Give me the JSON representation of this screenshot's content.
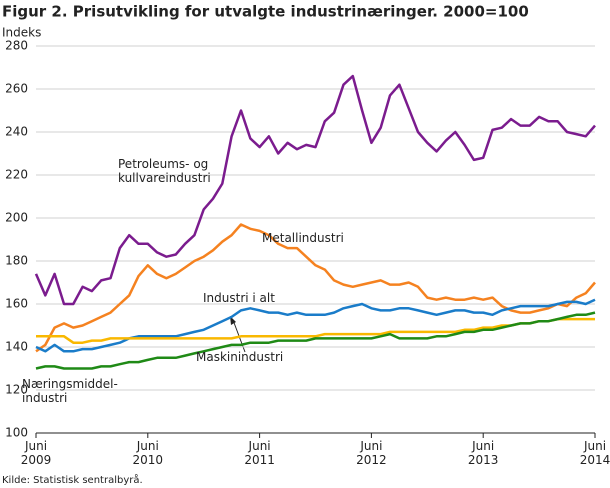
{
  "chart_data": {
    "type": "line",
    "title": "Figur 2. Prisutvikling for utvalgte industrinæringer. 2000=100",
    "y_label": "Indeks",
    "source": "Kilde: Statistisk sentralbyrå.",
    "categories": [
      "Juni 2009",
      null,
      null,
      null,
      null,
      null,
      null,
      null,
      null,
      null,
      null,
      null,
      "Juni 2010",
      null,
      null,
      null,
      null,
      null,
      null,
      null,
      null,
      null,
      null,
      null,
      "Juni 2011",
      null,
      null,
      null,
      null,
      null,
      null,
      null,
      null,
      null,
      null,
      null,
      "Juni 2012",
      null,
      null,
      null,
      null,
      null,
      null,
      null,
      null,
      null,
      null,
      null,
      "Juni 2013",
      null,
      null,
      null,
      null,
      null,
      null,
      null,
      null,
      null,
      null,
      null,
      "Juni 2014"
    ],
    "ylim": [
      100,
      280
    ],
    "yticks": [
      100,
      120,
      140,
      160,
      180,
      200,
      220,
      240,
      260,
      280
    ],
    "grid": true,
    "series": [
      {
        "name": "Petroleums- og kullvareindustri",
        "color": "#7b1c8e",
        "values": [
          174,
          164,
          174,
          160,
          160,
          168,
          166,
          171,
          172,
          186,
          192,
          188,
          188,
          184,
          182,
          183,
          188,
          192,
          204,
          209,
          216,
          238,
          250,
          237,
          233,
          238,
          230,
          235,
          232,
          234,
          233,
          245,
          249,
          262,
          266,
          250,
          235,
          242,
          257,
          262,
          251,
          240,
          235,
          231,
          236,
          240,
          234,
          227,
          228,
          241,
          242,
          246,
          243,
          243,
          247,
          245,
          245,
          240,
          239,
          238,
          243
        ]
      },
      {
        "name": "Metallindustri",
        "color": "#f58220",
        "values": [
          138,
          141,
          149,
          151,
          149,
          150,
          152,
          154,
          156,
          160,
          164,
          173,
          178,
          174,
          172,
          174,
          177,
          180,
          182,
          185,
          189,
          192,
          197,
          195,
          194,
          192,
          188,
          186,
          186,
          182,
          178,
          176,
          171,
          169,
          168,
          169,
          170,
          171,
          169,
          169,
          170,
          168,
          163,
          162,
          163,
          162,
          162,
          163,
          162,
          163,
          159,
          157,
          156,
          156,
          157,
          158,
          160,
          159,
          163,
          165,
          170
        ]
      },
      {
        "name": "Industri i alt",
        "color": "#1a7cc9",
        "values": [
          140,
          138,
          141,
          138,
          138,
          139,
          139,
          140,
          141,
          142,
          144,
          145,
          145,
          145,
          145,
          145,
          146,
          147,
          148,
          150,
          152,
          154,
          157,
          158,
          157,
          156,
          156,
          155,
          156,
          155,
          155,
          155,
          156,
          158,
          159,
          160,
          158,
          157,
          157,
          158,
          158,
          157,
          156,
          155,
          156,
          157,
          157,
          156,
          156,
          155,
          157,
          158,
          159,
          159,
          159,
          159,
          160,
          161,
          161,
          160,
          162
        ]
      },
      {
        "name": "Næringsmiddel- industri",
        "color": "#f9b800",
        "values": [
          145,
          145,
          145,
          145,
          142,
          142,
          143,
          143,
          144,
          144,
          144,
          144,
          144,
          144,
          144,
          144,
          144,
          144,
          144,
          144,
          144,
          144,
          145,
          145,
          145,
          145,
          145,
          145,
          145,
          145,
          145,
          146,
          146,
          146,
          146,
          146,
          146,
          146,
          147,
          147,
          147,
          147,
          147,
          147,
          147,
          147,
          148,
          148,
          149,
          149,
          150,
          150,
          151,
          151,
          152,
          152,
          153,
          153,
          153,
          153,
          153
        ]
      },
      {
        "name": "Maskinindustri",
        "color": "#1f8a16",
        "values": [
          130,
          131,
          131,
          130,
          130,
          130,
          130,
          131,
          131,
          132,
          133,
          133,
          134,
          135,
          135,
          135,
          136,
          137,
          138,
          139,
          140,
          141,
          141,
          142,
          142,
          142,
          143,
          143,
          143,
          143,
          144,
          144,
          144,
          144,
          144,
          144,
          144,
          145,
          146,
          144,
          144,
          144,
          144,
          145,
          145,
          146,
          147,
          147,
          148,
          148,
          149,
          150,
          151,
          151,
          152,
          152,
          153,
          154,
          155,
          155,
          156
        ]
      }
    ]
  }
}
